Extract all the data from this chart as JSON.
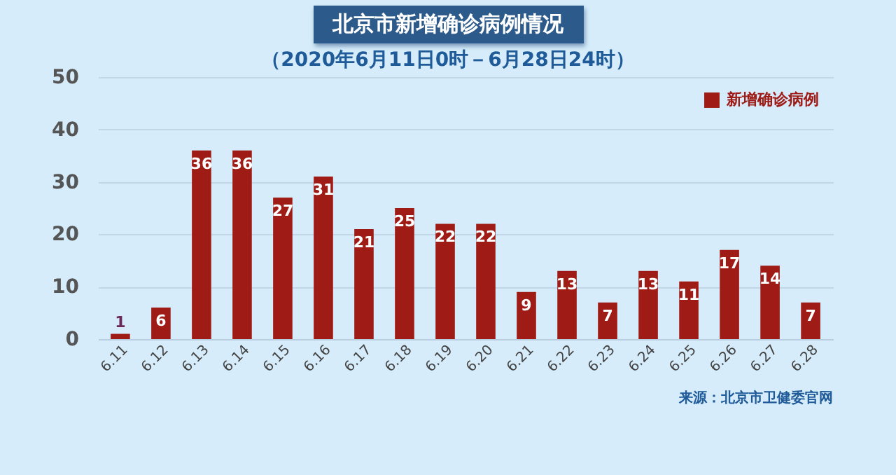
{
  "chart_data": {
    "type": "bar",
    "title": "北京市新增确诊病例情况",
    "subtitle": "（2020年6月11日0时－6月28日24时）",
    "categories": [
      "6.11",
      "6.12",
      "6.13",
      "6.14",
      "6.15",
      "6.16",
      "6.17",
      "6.18",
      "6.19",
      "6.20",
      "6.21",
      "6.22",
      "6.23",
      "6.24",
      "6.25",
      "6.26",
      "6.27",
      "6.28"
    ],
    "series": [
      {
        "name": "新增确诊病例",
        "color": "#9e1b16",
        "values": [
          1,
          6,
          36,
          36,
          27,
          31,
          21,
          25,
          22,
          22,
          9,
          13,
          7,
          13,
          11,
          17,
          14,
          7
        ]
      }
    ],
    "ylim": [
      0,
      50
    ],
    "yticks": [
      0,
      10,
      20,
      30,
      40,
      50
    ],
    "grid": "y",
    "legend": "top right",
    "data_labels": true,
    "annotations": [
      "来源：北京市卫健委官网"
    ]
  }
}
